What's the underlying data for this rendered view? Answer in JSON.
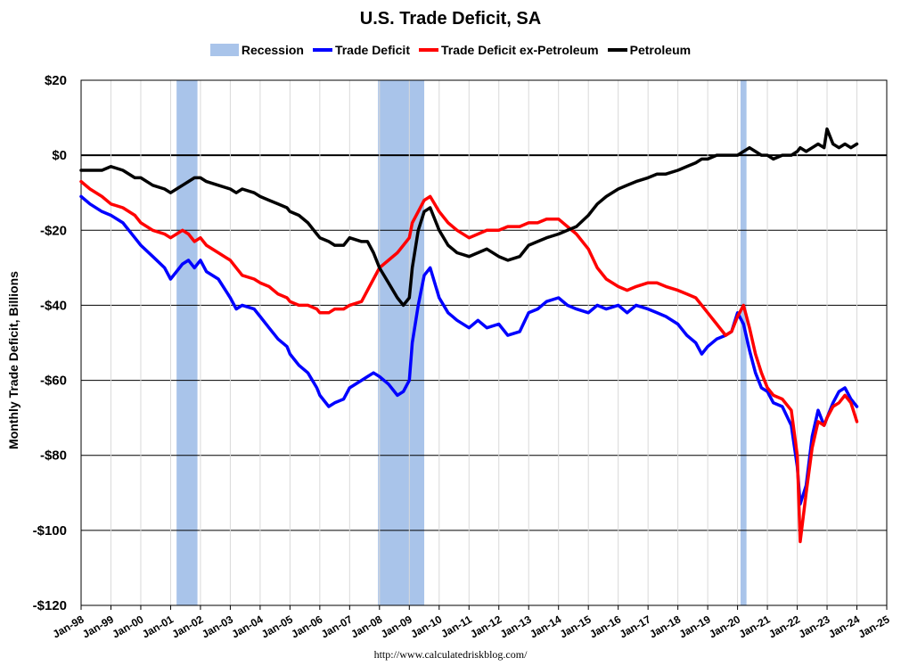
{
  "chart_data": {
    "type": "line",
    "title": "U.S. Trade Deficit, SA",
    "ylabel": "Monthly Trade Deficit, Billions",
    "ylim": [
      -120,
      20
    ],
    "yticks": [
      20,
      0,
      -20,
      -40,
      -60,
      -80,
      -100,
      -120
    ],
    "ytick_labels": [
      "$20",
      "$0",
      "-$20",
      "-$40",
      "-$60",
      "-$80",
      "-$100",
      "-$120"
    ],
    "xlim": [
      1998.0,
      2025.0
    ],
    "xtick_labels": [
      "Jan-98",
      "Jan-99",
      "Jan-00",
      "Jan-01",
      "Jan-02",
      "Jan-03",
      "Jan-04",
      "Jan-05",
      "Jan-06",
      "Jan-07",
      "Jan-08",
      "Jan-09",
      "Jan-10",
      "Jan-11",
      "Jan-12",
      "Jan-13",
      "Jan-14",
      "Jan-15",
      "Jan-16",
      "Jan-17",
      "Jan-18",
      "Jan-19",
      "Jan-20",
      "Jan-21",
      "Jan-22",
      "Jan-23",
      "Jan-24",
      "Jan-25"
    ],
    "grid": true,
    "legend_position": "top",
    "recessions": [
      [
        2001.2,
        2001.9
      ],
      [
        2007.95,
        2009.5
      ],
      [
        2020.1,
        2020.3
      ]
    ],
    "series": [
      {
        "name": "Recession",
        "color": "#a9c4ea",
        "style": "band"
      },
      {
        "name": "Trade Deficit",
        "color": "#0000ff",
        "x": [
          1998.0,
          1998.3,
          1998.7,
          1999.0,
          1999.4,
          1999.8,
          2000.0,
          2000.4,
          2000.8,
          2001.0,
          2001.2,
          2001.4,
          2001.6,
          2001.8,
          2002.0,
          2002.2,
          2002.6,
          2003.0,
          2003.2,
          2003.4,
          2003.8,
          2004.0,
          2004.3,
          2004.6,
          2004.9,
          2005.0,
          2005.3,
          2005.6,
          2005.9,
          2006.0,
          2006.3,
          2006.5,
          2006.8,
          2007.0,
          2007.4,
          2007.6,
          2007.8,
          2008.0,
          2008.3,
          2008.6,
          2008.8,
          2009.0,
          2009.1,
          2009.3,
          2009.5,
          2009.7,
          2010.0,
          2010.3,
          2010.6,
          2011.0,
          2011.3,
          2011.6,
          2012.0,
          2012.3,
          2012.7,
          2013.0,
          2013.3,
          2013.6,
          2014.0,
          2014.3,
          2014.6,
          2015.0,
          2015.3,
          2015.6,
          2016.0,
          2016.3,
          2016.6,
          2017.0,
          2017.3,
          2017.6,
          2018.0,
          2018.3,
          2018.6,
          2018.8,
          2019.0,
          2019.3,
          2019.6,
          2019.8,
          2020.0,
          2020.2,
          2020.4,
          2020.6,
          2020.8,
          2021.0,
          2021.2,
          2021.5,
          2021.8,
          2022.0,
          2022.1,
          2022.3,
          2022.5,
          2022.7,
          2022.9,
          2023.0,
          2023.2,
          2023.4,
          2023.6,
          2023.8,
          2024.0
        ],
        "y": [
          -11,
          -13,
          -15,
          -16,
          -18,
          -22,
          -24,
          -27,
          -30,
          -33,
          -31,
          -29,
          -28,
          -30,
          -28,
          -31,
          -33,
          -38,
          -41,
          -40,
          -41,
          -43,
          -46,
          -49,
          -51,
          -53,
          -56,
          -58,
          -62,
          -64,
          -67,
          -66,
          -65,
          -62,
          -60,
          -59,
          -58,
          -59,
          -61,
          -64,
          -63,
          -60,
          -50,
          -40,
          -32,
          -30,
          -38,
          -42,
          -44,
          -46,
          -44,
          -46,
          -45,
          -48,
          -47,
          -42,
          -41,
          -39,
          -38,
          -40,
          -41,
          -42,
          -40,
          -41,
          -40,
          -42,
          -40,
          -41,
          -42,
          -43,
          -45,
          -48,
          -50,
          -53,
          -51,
          -49,
          -48,
          -47,
          -42,
          -45,
          -52,
          -58,
          -62,
          -63,
          -66,
          -67,
          -72,
          -83,
          -93,
          -88,
          -75,
          -68,
          -72,
          -70,
          -66,
          -63,
          -62,
          -65,
          -67
        ]
      },
      {
        "name": "Trade Deficit ex-Petroleum",
        "color": "#ff0000",
        "x": [
          1998.0,
          1998.3,
          1998.7,
          1999.0,
          1999.4,
          1999.8,
          2000.0,
          2000.4,
          2000.8,
          2001.0,
          2001.2,
          2001.4,
          2001.6,
          2001.8,
          2002.0,
          2002.2,
          2002.6,
          2003.0,
          2003.2,
          2003.4,
          2003.8,
          2004.0,
          2004.3,
          2004.6,
          2004.9,
          2005.0,
          2005.3,
          2005.6,
          2005.9,
          2006.0,
          2006.3,
          2006.5,
          2006.8,
          2007.0,
          2007.4,
          2007.6,
          2007.8,
          2008.0,
          2008.3,
          2008.6,
          2008.8,
          2009.0,
          2009.1,
          2009.3,
          2009.5,
          2009.7,
          2010.0,
          2010.3,
          2010.6,
          2011.0,
          2011.3,
          2011.6,
          2012.0,
          2012.3,
          2012.7,
          2013.0,
          2013.3,
          2013.6,
          2014.0,
          2014.3,
          2014.6,
          2015.0,
          2015.3,
          2015.6,
          2016.0,
          2016.3,
          2016.6,
          2017.0,
          2017.3,
          2017.6,
          2018.0,
          2018.3,
          2018.6,
          2018.8,
          2019.0,
          2019.3,
          2019.6,
          2019.8,
          2020.0,
          2020.2,
          2020.4,
          2020.6,
          2020.8,
          2021.0,
          2021.2,
          2021.5,
          2021.8,
          2022.0,
          2022.1,
          2022.3,
          2022.5,
          2022.7,
          2022.9,
          2023.0,
          2023.2,
          2023.4,
          2023.6,
          2023.8,
          2024.0
        ],
        "y": [
          -7,
          -9,
          -11,
          -13,
          -14,
          -16,
          -18,
          -20,
          -21,
          -22,
          -21,
          -20,
          -21,
          -23,
          -22,
          -24,
          -26,
          -28,
          -30,
          -32,
          -33,
          -34,
          -35,
          -37,
          -38,
          -39,
          -40,
          -40,
          -41,
          -42,
          -42,
          -41,
          -41,
          -40,
          -39,
          -36,
          -33,
          -30,
          -28,
          -26,
          -24,
          -22,
          -18,
          -15,
          -12,
          -11,
          -15,
          -18,
          -20,
          -22,
          -21,
          -20,
          -20,
          -19,
          -19,
          -18,
          -18,
          -17,
          -17,
          -19,
          -21,
          -25,
          -30,
          -33,
          -35,
          -36,
          -35,
          -34,
          -34,
          -35,
          -36,
          -37,
          -38,
          -40,
          -42,
          -45,
          -48,
          -47,
          -43,
          -40,
          -46,
          -53,
          -58,
          -62,
          -64,
          -65,
          -68,
          -80,
          -103,
          -90,
          -78,
          -71,
          -72,
          -70,
          -67,
          -66,
          -64,
          -66,
          -71
        ]
      },
      {
        "name": "Petroleum",
        "color": "#000000",
        "x": [
          1998.0,
          1998.3,
          1998.7,
          1999.0,
          1999.4,
          1999.8,
          2000.0,
          2000.4,
          2000.8,
          2001.0,
          2001.2,
          2001.4,
          2001.6,
          2001.8,
          2002.0,
          2002.2,
          2002.6,
          2003.0,
          2003.2,
          2003.4,
          2003.8,
          2004.0,
          2004.3,
          2004.6,
          2004.9,
          2005.0,
          2005.3,
          2005.6,
          2005.9,
          2006.0,
          2006.3,
          2006.5,
          2006.8,
          2007.0,
          2007.4,
          2007.6,
          2007.8,
          2008.0,
          2008.3,
          2008.6,
          2008.8,
          2009.0,
          2009.1,
          2009.3,
          2009.5,
          2009.7,
          2010.0,
          2010.3,
          2010.6,
          2011.0,
          2011.3,
          2011.6,
          2012.0,
          2012.3,
          2012.7,
          2013.0,
          2013.3,
          2013.6,
          2014.0,
          2014.3,
          2014.6,
          2015.0,
          2015.3,
          2015.6,
          2016.0,
          2016.3,
          2016.6,
          2017.0,
          2017.3,
          2017.6,
          2018.0,
          2018.3,
          2018.6,
          2018.8,
          2019.0,
          2019.3,
          2019.6,
          2019.8,
          2020.0,
          2020.2,
          2020.4,
          2020.6,
          2020.8,
          2021.0,
          2021.2,
          2021.5,
          2021.8,
          2022.0,
          2022.1,
          2022.3,
          2022.5,
          2022.7,
          2022.9,
          2023.0,
          2023.2,
          2023.4,
          2023.6,
          2023.8,
          2024.0
        ],
        "y": [
          -4,
          -4,
          -4,
          -3,
          -4,
          -6,
          -6,
          -8,
          -9,
          -10,
          -9,
          -8,
          -7,
          -6,
          -6,
          -7,
          -8,
          -9,
          -10,
          -9,
          -10,
          -11,
          -12,
          -13,
          -14,
          -15,
          -16,
          -18,
          -21,
          -22,
          -23,
          -24,
          -24,
          -22,
          -23,
          -23,
          -26,
          -30,
          -34,
          -38,
          -40,
          -38,
          -30,
          -20,
          -15,
          -14,
          -20,
          -24,
          -26,
          -27,
          -26,
          -25,
          -27,
          -28,
          -27,
          -24,
          -23,
          -22,
          -21,
          -20,
          -19,
          -16,
          -13,
          -11,
          -9,
          -8,
          -7,
          -6,
          -5,
          -5,
          -4,
          -3,
          -2,
          -1,
          -1,
          0,
          0,
          0,
          0,
          1,
          2,
          1,
          0,
          0,
          -1,
          0,
          0,
          1,
          2,
          1,
          2,
          3,
          2,
          7,
          3,
          2,
          3,
          2,
          3
        ]
      }
    ]
  },
  "source_url": "http://www.calculatedriskblog.com/"
}
